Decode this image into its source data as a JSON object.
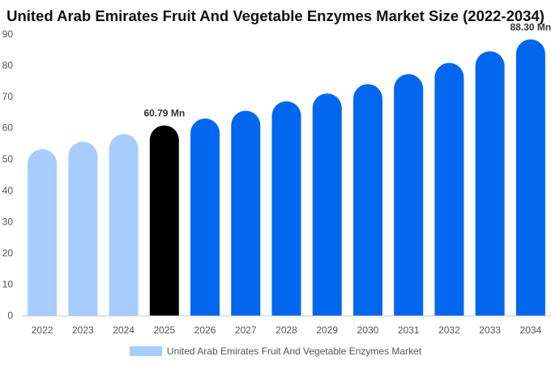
{
  "chart_data": {
    "type": "bar",
    "title": "United Arab Emirates Fruit And Vegetable Enzymes Market Size (2022-2034)",
    "xlabel": "",
    "ylabel": "",
    "categories": [
      "2022",
      "2023",
      "2024",
      "2025",
      "2026",
      "2027",
      "2028",
      "2029",
      "2030",
      "2031",
      "2032",
      "2033",
      "2034"
    ],
    "series": [
      {
        "name": "United Arab Emirates Fruit And Vegetable Enzymes Market",
        "values": [
          53.2,
          55.6,
          58.0,
          60.79,
          63.0,
          65.5,
          68.5,
          71.0,
          74.0,
          77.2,
          80.8,
          84.5,
          88.3
        ]
      }
    ],
    "ylim": [
      0,
      90
    ],
    "yticks": [
      0,
      10,
      20,
      30,
      40,
      50,
      60,
      70,
      80,
      90
    ],
    "data_labels": [
      {
        "index": 3,
        "text": "60.79 Mn"
      },
      {
        "index": 12,
        "text": "88.30 Mn"
      }
    ],
    "colors": {
      "historical": "#a6cdfd",
      "current": "#000000",
      "forecast": "#0167ee",
      "legend": "#a6cdfd"
    },
    "grid": false,
    "legend_position": "bottom"
  }
}
